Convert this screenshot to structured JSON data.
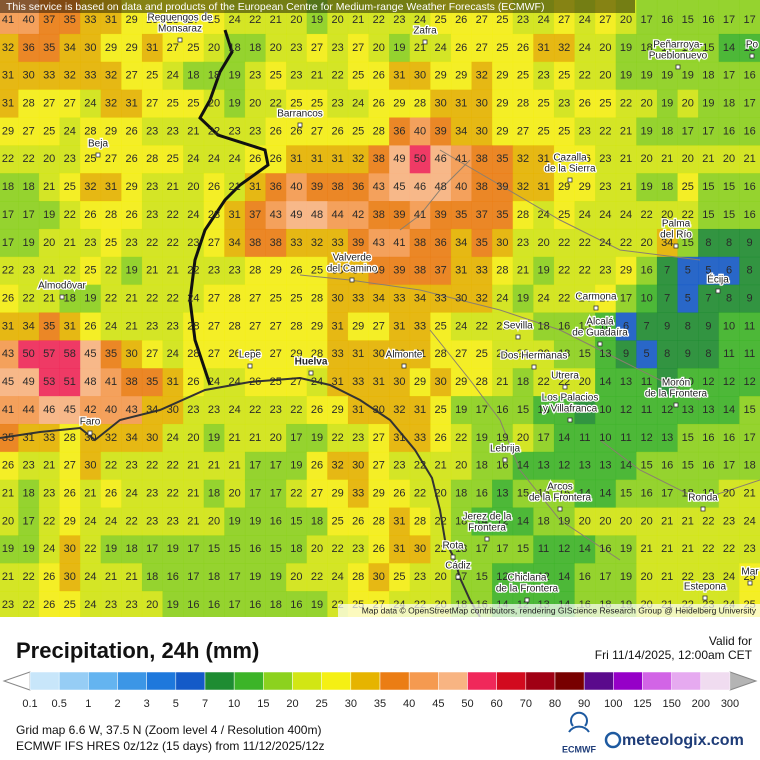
{
  "notice": "This service is based on data and products of the European Centre for Medium-range Weather Forecasts (ECMWF)",
  "attribution": "Map data © OpenStreetMap contributors, rendering GIScience Research Group @ Heidelberg University",
  "title": "Precipitation, 24h (mm)",
  "valid_label": "Valid for",
  "valid_time": "Fri 11/14/2025, 12:00am CET",
  "grid_info": "Grid map 6.6 W, 37.5 N (Zoom level 4 / Resolution 400m)",
  "model_info": "ECMWF IFS HRES 0z/12z (15 days) from 11/12/2025/12z",
  "logo_ecmwf": "ECMWF",
  "logo_site": "meteologix.com",
  "legend": {
    "thresholds": [
      0.1,
      0.5,
      1,
      2,
      3,
      5,
      7,
      10,
      15,
      20,
      25,
      30,
      35,
      40,
      45,
      50,
      60,
      70,
      80,
      90,
      100,
      125,
      150,
      200,
      300
    ],
    "colors": [
      "#c8e6fa",
      "#96cdf5",
      "#64b4f0",
      "#3c96e6",
      "#1e78dc",
      "#145ac8",
      "#1e8c32",
      "#3cb428",
      "#8cd21e",
      "#d2e614",
      "#f5f014",
      "#e6b400",
      "#eb7d14",
      "#f59a50",
      "#f8b482",
      "#f0285a",
      "#d20a1e",
      "#a00014",
      "#780000",
      "#5a0a8c",
      "#9600c8",
      "#d264e6",
      "#e6aaf0",
      "#f0dcf0"
    ],
    "under_color": "#ffffff",
    "over_color": "#b4b4b4"
  },
  "grid": {
    "rows": [
      [
        41,
        40,
        37,
        35,
        33,
        31,
        29,
        29,
        28,
        27,
        25,
        24,
        22,
        21,
        20,
        19,
        20,
        21,
        22,
        23,
        24,
        25,
        26,
        27,
        25,
        23,
        24,
        27,
        24,
        27,
        20,
        17,
        16,
        15,
        16,
        17,
        17
      ],
      [
        32,
        36,
        35,
        34,
        30,
        29,
        29,
        31,
        27,
        25,
        20,
        18,
        18,
        20,
        23,
        27,
        23,
        27,
        20,
        19,
        21,
        24,
        26,
        27,
        25,
        26,
        31,
        32,
        24,
        20,
        19,
        18,
        17,
        16,
        15,
        14,
        13
      ],
      [
        31,
        30,
        33,
        32,
        33,
        32,
        27,
        25,
        24,
        18,
        18,
        19,
        23,
        25,
        23,
        21,
        22,
        25,
        26,
        31,
        30,
        29,
        29,
        32,
        29,
        25,
        23,
        25,
        22,
        20,
        19,
        19,
        19,
        19,
        18,
        17,
        16
      ],
      [
        31,
        28,
        27,
        27,
        24,
        32,
        31,
        27,
        25,
        25,
        20,
        19,
        20,
        22,
        25,
        25,
        23,
        24,
        26,
        29,
        28,
        30,
        31,
        30,
        29,
        28,
        25,
        23,
        26,
        25,
        22,
        20,
        19,
        20,
        19,
        18,
        17
      ],
      [
        29,
        27,
        25,
        24,
        28,
        29,
        26,
        23,
        23,
        21,
        22,
        23,
        23,
        26,
        26,
        27,
        26,
        25,
        28,
        36,
        40,
        39,
        34,
        30,
        29,
        27,
        25,
        25,
        23,
        22,
        21,
        19,
        18,
        17,
        17,
        16,
        16
      ],
      [
        22,
        22,
        20,
        23,
        25,
        27,
        26,
        28,
        25,
        24,
        24,
        24,
        26,
        26,
        31,
        31,
        31,
        32,
        38,
        49,
        50,
        46,
        41,
        38,
        35,
        32,
        31,
        28,
        26,
        23,
        21,
        20,
        21,
        20,
        21,
        20,
        21
      ],
      [
        18,
        18,
        21,
        25,
        32,
        31,
        29,
        23,
        21,
        20,
        26,
        21,
        31,
        36,
        40,
        39,
        38,
        36,
        43,
        45,
        46,
        48,
        40,
        38,
        39,
        32,
        31,
        29,
        29,
        23,
        21,
        19,
        18,
        25,
        15,
        15,
        16
      ],
      [
        17,
        17,
        19,
        22,
        26,
        28,
        26,
        23,
        22,
        24,
        28,
        31,
        37,
        43,
        49,
        48,
        44,
        42,
        38,
        39,
        41,
        39,
        35,
        37,
        35,
        28,
        24,
        25,
        24,
        24,
        24,
        22,
        20,
        22,
        15,
        15,
        16
      ],
      [
        17,
        19,
        20,
        21,
        23,
        25,
        23,
        22,
        22,
        23,
        27,
        34,
        38,
        38,
        33,
        32,
        33,
        39,
        43,
        41,
        38,
        36,
        34,
        35,
        30,
        23,
        20,
        22,
        22,
        24,
        22,
        20,
        34,
        15,
        8,
        8,
        9
      ],
      [
        22,
        23,
        21,
        22,
        25,
        22,
        19,
        21,
        21,
        22,
        23,
        23,
        28,
        29,
        26,
        25,
        30,
        34,
        39,
        39,
        38,
        37,
        31,
        33,
        28,
        21,
        19,
        22,
        22,
        23,
        29,
        16,
        7,
        5,
        5,
        6,
        8
      ],
      [
        26,
        22,
        21,
        18,
        19,
        22,
        21,
        22,
        22,
        24,
        27,
        28,
        27,
        25,
        25,
        28,
        30,
        33,
        34,
        33,
        34,
        33,
        30,
        32,
        24,
        19,
        24,
        22,
        24,
        27,
        17,
        10,
        7,
        5,
        7,
        8,
        9
      ],
      [
        31,
        34,
        35,
        31,
        26,
        24,
        21,
        23,
        23,
        28,
        27,
        28,
        27,
        27,
        28,
        29,
        31,
        29,
        27,
        31,
        33,
        25,
        24,
        22,
        21,
        20,
        18,
        16,
        15,
        10,
        6,
        7,
        9,
        8,
        9,
        10,
        11
      ],
      [
        43,
        50,
        57,
        58,
        45,
        35,
        30,
        27,
        24,
        28,
        27,
        26,
        25,
        27,
        29,
        28,
        33,
        31,
        30,
        30,
        31,
        28,
        27,
        25,
        24,
        22,
        20,
        18,
        15,
        13,
        9,
        5,
        8,
        9,
        8,
        11,
        11
      ],
      [
        45,
        49,
        53,
        51,
        48,
        41,
        38,
        35,
        31,
        26,
        24,
        24,
        26,
        25,
        27,
        24,
        31,
        33,
        31,
        30,
        29,
        30,
        29,
        28,
        21,
        18,
        22,
        22,
        20,
        14,
        13,
        11,
        9,
        10,
        12,
        12,
        12
      ],
      [
        41,
        44,
        46,
        45,
        42,
        40,
        43,
        34,
        30,
        23,
        23,
        24,
        22,
        23,
        22,
        26,
        29,
        31,
        30,
        32,
        31,
        25,
        19,
        17,
        16,
        15,
        13,
        11,
        9,
        10,
        12,
        11,
        12,
        13,
        13,
        14,
        15
      ],
      [
        35,
        31,
        33,
        28,
        30,
        32,
        34,
        30,
        24,
        20,
        19,
        21,
        21,
        20,
        17,
        19,
        22,
        23,
        27,
        31,
        33,
        26,
        22,
        19,
        19,
        20,
        17,
        14,
        11,
        10,
        11,
        12,
        13,
        15,
        16,
        16,
        17
      ],
      [
        26,
        23,
        21,
        27,
        30,
        22,
        23,
        22,
        22,
        21,
        21,
        21,
        17,
        17,
        19,
        26,
        32,
        30,
        27,
        23,
        22,
        21,
        20,
        18,
        16,
        14,
        13,
        12,
        13,
        13,
        14,
        15,
        16,
        15,
        16,
        17,
        18
      ],
      [
        21,
        18,
        23,
        26,
        21,
        26,
        24,
        23,
        22,
        21,
        18,
        20,
        17,
        17,
        22,
        27,
        29,
        33,
        29,
        26,
        22,
        20,
        18,
        16,
        13,
        15,
        16,
        15,
        14,
        14,
        15,
        16,
        17,
        18,
        19,
        20,
        21
      ],
      [
        20,
        17,
        22,
        29,
        24,
        24,
        22,
        23,
        23,
        21,
        20,
        19,
        19,
        16,
        15,
        18,
        25,
        26,
        28,
        31,
        28,
        22,
        18,
        14,
        12,
        14,
        18,
        19,
        20,
        20,
        20,
        20,
        21,
        21,
        22,
        23,
        24
      ],
      [
        19,
        19,
        24,
        30,
        22,
        19,
        18,
        17,
        19,
        17,
        15,
        15,
        16,
        15,
        18,
        20,
        22,
        23,
        26,
        31,
        30,
        22,
        18,
        17,
        17,
        15,
        11,
        12,
        14,
        16,
        19,
        21,
        21,
        21,
        22,
        22,
        23
      ],
      [
        21,
        22,
        26,
        30,
        24,
        21,
        21,
        18,
        16,
        17,
        18,
        17,
        19,
        19,
        20,
        22,
        24,
        28,
        30,
        25,
        23,
        20,
        17,
        15,
        12,
        10,
        12,
        14,
        16,
        17,
        19,
        20,
        21,
        22,
        23,
        24,
        25
      ],
      [
        23,
        22,
        26,
        25,
        24,
        23,
        23,
        20,
        19,
        16,
        16,
        17,
        16,
        18,
        16,
        19,
        22,
        25,
        27,
        24,
        22,
        20,
        18,
        16,
        14,
        12,
        13,
        14,
        16,
        18,
        19,
        20,
        21,
        22,
        23,
        24,
        25
      ]
    ]
  },
  "places": [
    [
      "Reguengos de",
      "Monsaraz"
    ],
    [
      "Zafra"
    ],
    [
      "Peñarroya-",
      "Pueblonuevo"
    ],
    [
      "Barrancos"
    ],
    [
      "Beja"
    ],
    [
      "Cazalla",
      "de la Sierra"
    ],
    [
      "Palma",
      "del Río"
    ],
    [
      "Valverde",
      "del Camino"
    ],
    [
      "Écija"
    ],
    [
      "Almodôvar"
    ],
    [
      "Carmona"
    ],
    [
      "Sevilla"
    ],
    [
      "Alcalá",
      "de Guadaíra"
    ],
    [
      "Lepe"
    ],
    [
      "Huelva"
    ],
    [
      "Almonte"
    ],
    [
      "Dos Hermanas"
    ],
    [
      "Utrera"
    ],
    [
      "Los Palacios",
      "y Villafranca"
    ],
    [
      "Morón",
      "de la Frontera"
    ],
    [
      "Faro"
    ],
    [
      "Lebrija"
    ],
    [
      "Arcos",
      "de la Frontera"
    ],
    [
      "Ronda"
    ],
    [
      "Jerez de la",
      "Frontera"
    ],
    [
      "Rota"
    ],
    [
      "Cádiz"
    ],
    [
      "Chiclana",
      "de la Frontera"
    ],
    [
      "Estepona"
    ],
    [
      "Mar"
    ],
    [
      "Po"
    ]
  ]
}
